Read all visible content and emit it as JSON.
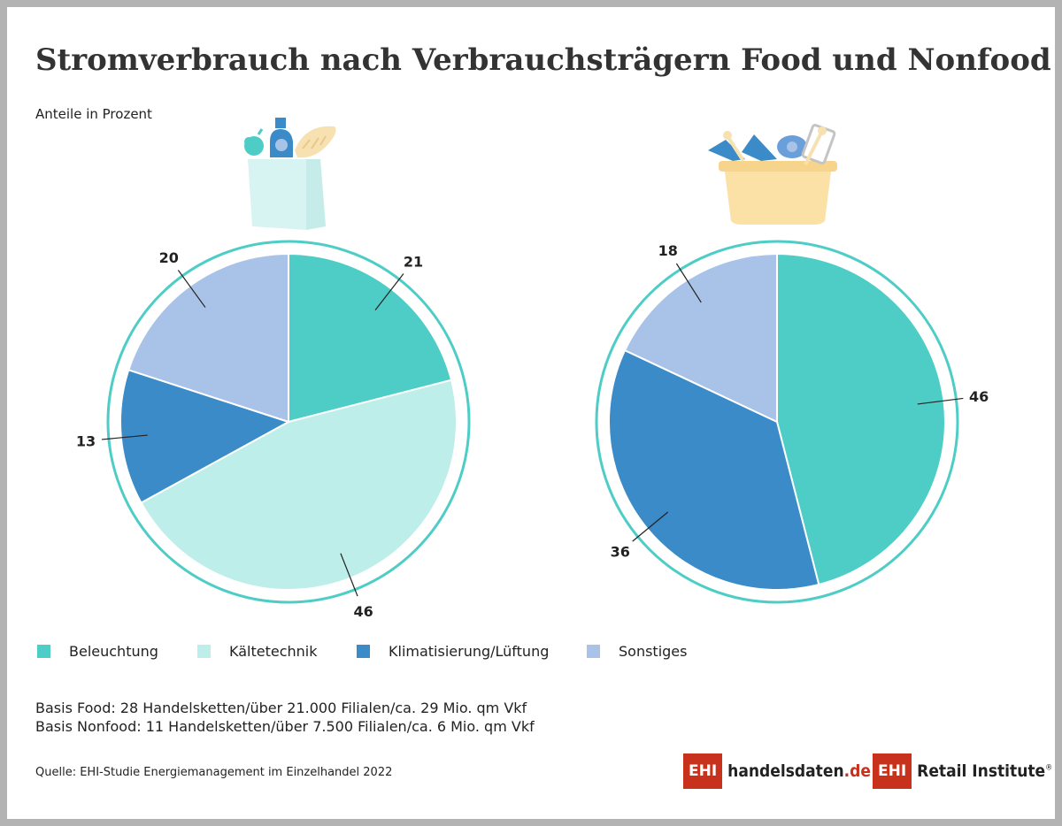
{
  "title": "Stromverbrauch nach Verbrauchsträgern Food und Nonfood",
  "subtitle": "Anteile in Prozent",
  "colors": {
    "beleuchtung": "#4ecdc7",
    "kaeltetechnik": "#bdeee9",
    "klimatisierung": "#3a8bc8",
    "sonstiges": "#a9c3e8",
    "ring": "#4ecdc7",
    "ehi_red": "#c8321c"
  },
  "chart_data": [
    {
      "type": "pie",
      "name": "Food",
      "icon": "grocery-bag-icon",
      "categories": [
        "Beleuchtung",
        "Kältetechnik",
        "Klimatisierung/Lüftung",
        "Sonstiges"
      ],
      "values": [
        21,
        46,
        13,
        20
      ],
      "labels": [
        "21",
        "46",
        "13",
        "20"
      ]
    },
    {
      "type": "pie",
      "name": "Nonfood",
      "icon": "shopping-basket-icon",
      "categories": [
        "Beleuchtung",
        "Klimatisierung/Lüftung",
        "Sonstiges"
      ],
      "values": [
        46,
        36,
        18
      ],
      "labels": [
        "46",
        "36",
        "18"
      ]
    }
  ],
  "legend": [
    {
      "label": "Beleuchtung",
      "color": "#4ecdc7"
    },
    {
      "label": "Kältetechnik",
      "color": "#bdeee9"
    },
    {
      "label": "Klimatisierung/Lüftung",
      "color": "#3a8bc8"
    },
    {
      "label": "Sonstiges",
      "color": "#a9c3e8"
    }
  ],
  "basis": {
    "food": "Basis Food: 28 Handelsketten/über 21.000 Filialen/ca. 29 Mio. qm Vkf",
    "nonfood": "Basis Nonfood: 11 Handelsketten/über 7.500 Filialen/ca. 6 Mio. qm Vkf"
  },
  "source": "Quelle: EHI-Studie Energiemanagement im Einzelhandel 2022",
  "logos": {
    "handelsdaten_box": "EHI",
    "handelsdaten_text": "handelsdaten",
    "handelsdaten_tld": ".de",
    "retail_box": "EHI",
    "retail_text": "Retail Institute",
    "retail_reg": "®"
  }
}
